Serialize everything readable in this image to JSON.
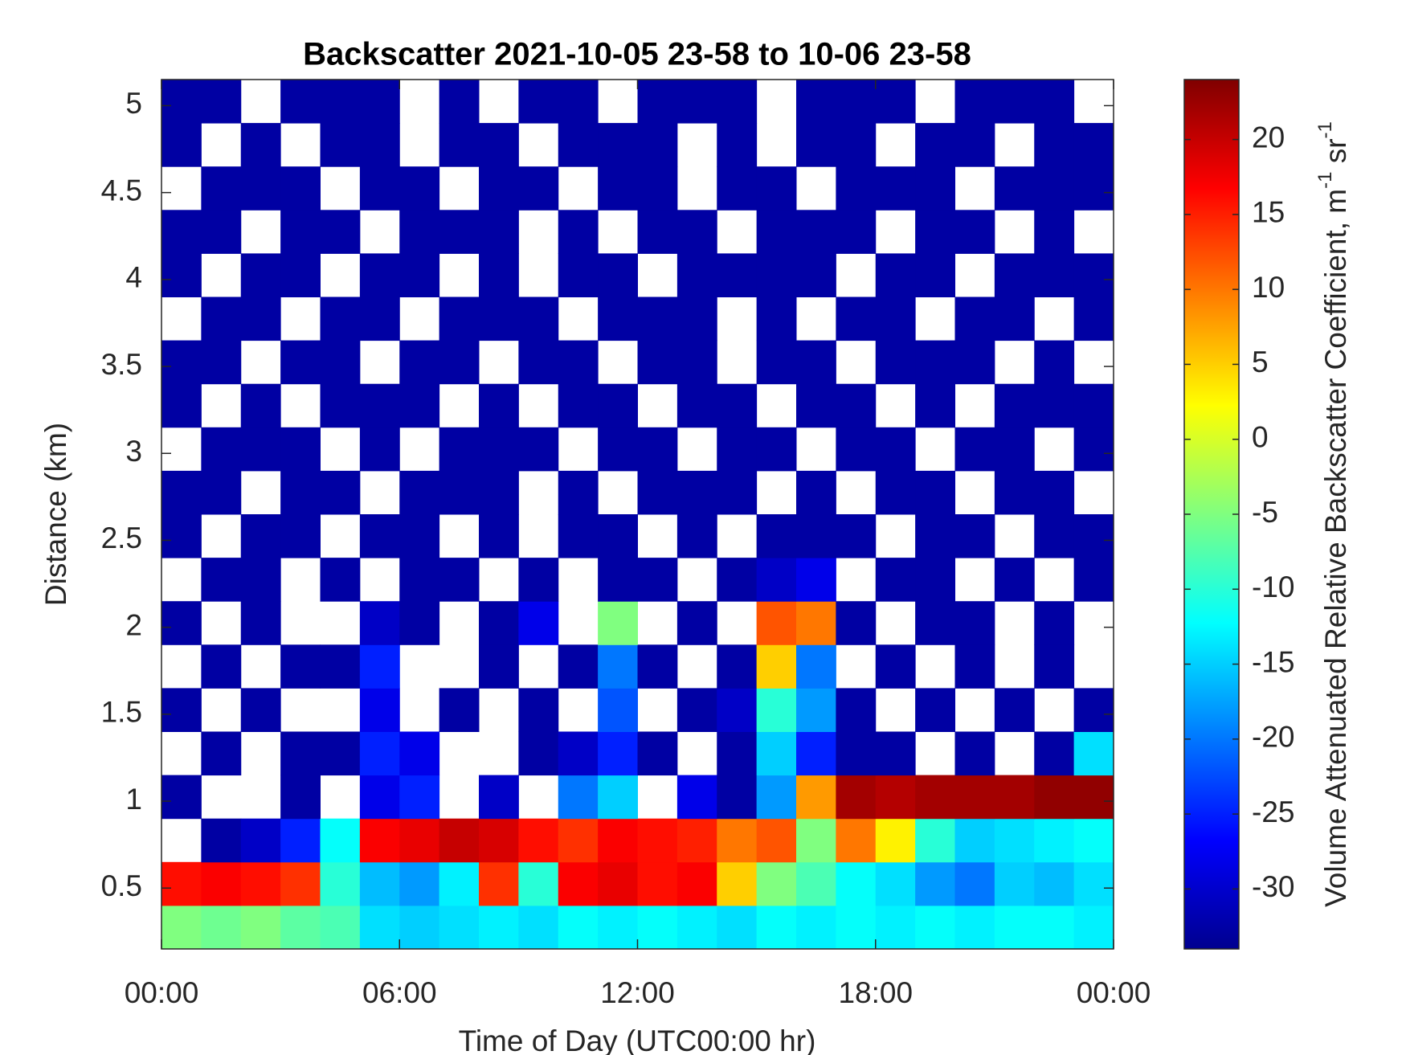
{
  "chart_data": {
    "type": "heatmap",
    "title": "Backscatter 2021-10-05 23-58 to 10-06 23-58",
    "x_label": "Time of Day (UTC00:00 hr)",
    "y_label": "Distance (km)",
    "colorbar_label": [
      "Volume Attenuated Relative Backscatter Coefficient, m",
      "-1",
      " sr",
      "-1"
    ],
    "colormap": "jet",
    "x": [
      0.5,
      1.5,
      2.5,
      3.5,
      4.5,
      5.5,
      6.5,
      7.5,
      8.5,
      9.5,
      10.5,
      11.5,
      12.5,
      13.5,
      14.5,
      15.5,
      16.5,
      17.5,
      18.5,
      19.5,
      20.5,
      21.5,
      22.5,
      23.5
    ],
    "y": [
      0.275,
      0.525,
      0.775,
      1.025,
      1.275,
      1.525,
      1.775,
      2.025,
      2.275,
      2.525,
      2.775,
      3.025,
      3.275,
      3.525,
      3.775,
      4.025,
      4.275,
      4.525,
      4.775,
      5.025
    ],
    "z": [
      [
        -5,
        -6,
        -5,
        -7,
        -8,
        -14,
        -15,
        -14,
        -13,
        -14,
        -12,
        -13,
        -12,
        -13,
        -14,
        -12,
        -13,
        -12,
        -13,
        -12,
        -13,
        -12,
        -12,
        -13
      ],
      [
        16,
        17,
        16,
        14,
        -10,
        -16,
        -18,
        -13,
        14,
        -10,
        17,
        18,
        16,
        17,
        5,
        -5,
        -8,
        -12,
        -14,
        -18,
        -20,
        -15,
        -16,
        -14
      ],
      [
        null,
        -32,
        -30,
        -25,
        -12,
        17,
        18,
        20,
        19,
        16,
        14,
        17,
        16,
        15,
        10,
        12,
        -5,
        10,
        3,
        -10,
        -15,
        -14,
        -13,
        -12
      ],
      [
        -32,
        null,
        null,
        -32,
        null,
        -28,
        -25,
        null,
        -30,
        null,
        -20,
        -15,
        null,
        -28,
        -32,
        -18,
        8,
        22,
        21,
        22,
        22,
        22,
        23,
        23
      ],
      [
        null,
        -32,
        null,
        -32,
        -32,
        -25,
        -28,
        null,
        null,
        -32,
        -30,
        -25,
        -32,
        null,
        -32,
        -15,
        -25,
        -32,
        -32,
        null,
        -32,
        null,
        -32,
        -14
      ],
      [
        -32,
        null,
        -32,
        null,
        null,
        -28,
        null,
        -32,
        null,
        -32,
        null,
        -22,
        null,
        -32,
        -30,
        -10,
        -18,
        -32,
        null,
        -32,
        null,
        -32,
        null,
        -32
      ],
      [
        null,
        -32,
        null,
        -32,
        -32,
        -25,
        null,
        null,
        -32,
        null,
        -32,
        -20,
        -32,
        null,
        -32,
        5,
        -20,
        null,
        -32,
        null,
        -32,
        null,
        -32,
        null
      ],
      [
        -32,
        null,
        -32,
        null,
        null,
        -30,
        -32,
        null,
        -32,
        -28,
        null,
        -5,
        null,
        -32,
        null,
        12,
        10,
        -32,
        null,
        -32,
        -32,
        null,
        -32,
        null
      ],
      [
        null,
        -32,
        -32,
        null,
        -32,
        null,
        -32,
        -32,
        null,
        -32,
        null,
        -32,
        -32,
        null,
        -32,
        -30,
        -28,
        null,
        -32,
        -32,
        null,
        -32,
        null,
        -32
      ],
      [
        -32,
        null,
        -32,
        -32,
        null,
        -32,
        -32,
        null,
        -32,
        null,
        -32,
        -32,
        null,
        -32,
        null,
        -32,
        -32,
        -32,
        null,
        -32,
        -32,
        null,
        -32,
        -32
      ],
      [
        -32,
        -32,
        null,
        -32,
        -32,
        null,
        -32,
        -32,
        -32,
        null,
        -32,
        null,
        -32,
        -32,
        -32,
        null,
        -32,
        null,
        -32,
        -32,
        null,
        -32,
        -32,
        null
      ],
      [
        null,
        -32,
        -32,
        -32,
        null,
        -32,
        null,
        -32,
        -32,
        -32,
        null,
        -32,
        -32,
        null,
        -32,
        -32,
        null,
        -32,
        -32,
        null,
        -32,
        -32,
        null,
        -32
      ],
      [
        -32,
        null,
        -32,
        null,
        -32,
        -32,
        -32,
        null,
        -32,
        null,
        -32,
        -32,
        null,
        -32,
        -32,
        null,
        -32,
        -32,
        null,
        -32,
        null,
        -32,
        -32,
        -32
      ],
      [
        -32,
        -32,
        null,
        -32,
        -32,
        null,
        -32,
        -32,
        null,
        -32,
        -32,
        null,
        -32,
        -32,
        null,
        -32,
        -32,
        null,
        -32,
        -32,
        -32,
        null,
        -32,
        null
      ],
      [
        null,
        -32,
        -32,
        null,
        -32,
        -32,
        null,
        -32,
        -32,
        -32,
        null,
        -32,
        -32,
        -32,
        null,
        -32,
        null,
        -32,
        -32,
        null,
        -32,
        -32,
        null,
        -32
      ],
      [
        -32,
        null,
        -32,
        -32,
        null,
        -32,
        -32,
        null,
        -32,
        null,
        -32,
        -32,
        null,
        -32,
        -32,
        -32,
        -32,
        null,
        -32,
        -32,
        null,
        -32,
        -32,
        -32
      ],
      [
        -32,
        -32,
        null,
        -32,
        -32,
        null,
        -32,
        -32,
        -32,
        null,
        -32,
        null,
        -32,
        -32,
        null,
        -32,
        -32,
        -32,
        null,
        -32,
        -32,
        null,
        -32,
        null
      ],
      [
        null,
        -32,
        -32,
        -32,
        null,
        -32,
        -32,
        null,
        -32,
        -32,
        null,
        -32,
        -32,
        null,
        -32,
        -32,
        null,
        -32,
        -32,
        -32,
        null,
        -32,
        -32,
        -32
      ],
      [
        -32,
        null,
        -32,
        null,
        -32,
        -32,
        null,
        -32,
        -32,
        null,
        -32,
        -32,
        -32,
        null,
        -32,
        null,
        -32,
        -32,
        null,
        -32,
        -32,
        null,
        -32,
        -32
      ],
      [
        -32,
        -32,
        null,
        -32,
        -32,
        -32,
        null,
        -32,
        null,
        -32,
        -32,
        null,
        -32,
        -32,
        -32,
        null,
        -32,
        -32,
        -32,
        null,
        -32,
        -32,
        -32,
        null
      ]
    ],
    "xlim": [
      0,
      24
    ],
    "xticks": [
      {
        "value": 0,
        "label": "00:00"
      },
      {
        "value": 6,
        "label": "06:00"
      },
      {
        "value": 12,
        "label": "12:00"
      },
      {
        "value": 18,
        "label": "18:00"
      },
      {
        "value": 24,
        "label": "00:00"
      }
    ],
    "ylim": [
      0.15,
      5.15
    ],
    "yticks": [
      0.5,
      1,
      1.5,
      2,
      2.5,
      3,
      3.5,
      4,
      4.5,
      5
    ],
    "zlim": [
      -34,
      24
    ],
    "zticks": [
      -30,
      -25,
      -20,
      -15,
      -10,
      -5,
      0,
      5,
      10,
      15,
      20
    ]
  }
}
